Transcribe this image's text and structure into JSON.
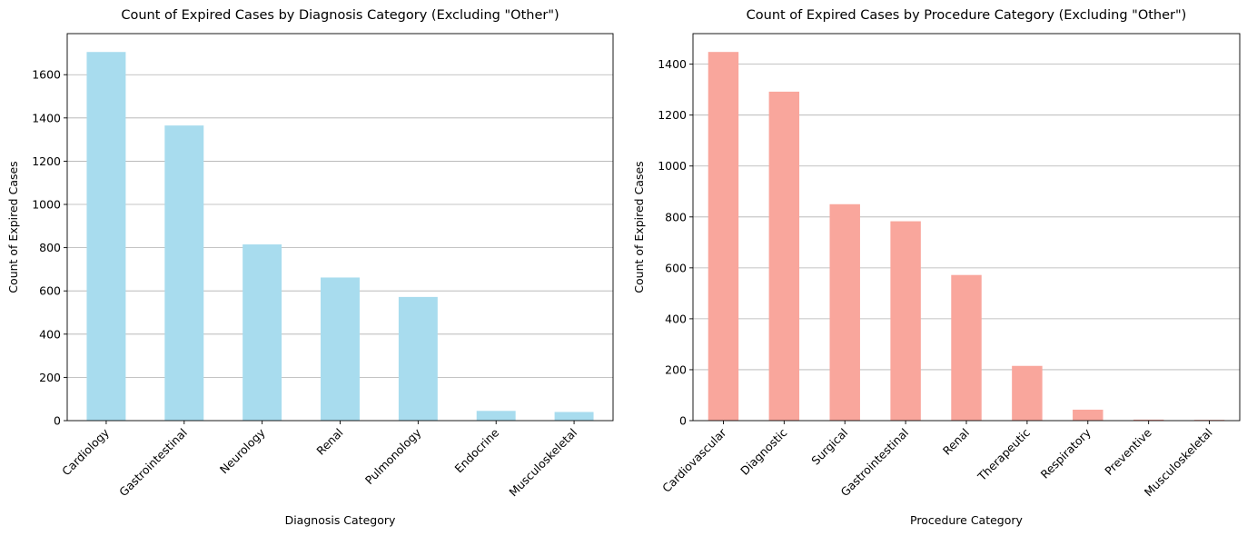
{
  "chart_data": [
    {
      "type": "bar",
      "title": "Count of Expired Cases by Diagnosis Category (Excluding \"Other\")",
      "xlabel": "Diagnosis Category",
      "ylabel": "Count of Expired Cases",
      "categories": [
        "Cardiology",
        "Gastrointestinal",
        "Neurology",
        "Renal",
        "Pulmonology",
        "Endocrine",
        "Musculoskeletal"
      ],
      "values": [
        1705,
        1365,
        815,
        662,
        572,
        45,
        40
      ],
      "ylim": [
        0,
        1790
      ],
      "yticks": [
        0,
        200,
        400,
        600,
        800,
        1000,
        1200,
        1400,
        1600
      ],
      "grid": "y",
      "color": "#a8dcee"
    },
    {
      "type": "bar",
      "title": "Count of Expired Cases by Procedure Category (Excluding \"Other\")",
      "xlabel": "Procedure Category",
      "ylabel": "Count of Expired Cases",
      "categories": [
        "Cardiovascular",
        "Diagnostic",
        "Surgical",
        "Gastrointestinal",
        "Renal",
        "Therapeutic",
        "Respiratory",
        "Preventive",
        "Musculoskeletal"
      ],
      "values": [
        1448,
        1292,
        850,
        783,
        572,
        215,
        43,
        4,
        3
      ],
      "ylim": [
        0,
        1520
      ],
      "yticks": [
        0,
        200,
        400,
        600,
        800,
        1000,
        1200,
        1400
      ],
      "grid": "y",
      "color": "#f9a69c"
    }
  ]
}
